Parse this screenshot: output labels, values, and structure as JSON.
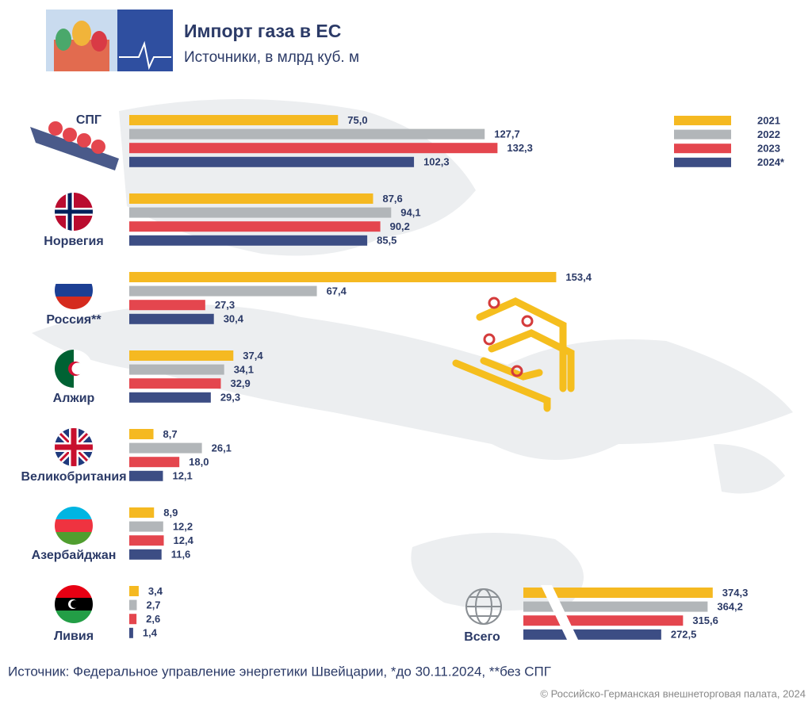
{
  "chart_data": [
    {
      "type": "bar",
      "title": "Импорт газа в ЕС",
      "subtitle": "Источники, в млрд куб. м",
      "categories": [
        "СПГ",
        "Норвегия",
        "Россия**",
        "Алжир",
        "Великобритания",
        "Азербайджан",
        "Ливия"
      ],
      "series": [
        {
          "name": "2021",
          "color": "#f5b921",
          "values": [
            75.0,
            87.6,
            153.4,
            37.4,
            8.7,
            8.9,
            3.4
          ],
          "value_labels": [
            "75,0",
            "87,6",
            "153,4",
            "37,4",
            "8,7",
            "8,9",
            "3,4"
          ]
        },
        {
          "name": "2022",
          "color": "#b2b6b9",
          "values": [
            127.7,
            94.1,
            67.4,
            34.1,
            26.1,
            12.2,
            2.7
          ],
          "value_labels": [
            "127,7",
            "94,1",
            "67,4",
            "34,1",
            "26,1",
            "12,2",
            "2,7"
          ]
        },
        {
          "name": "2023",
          "color": "#e4464e",
          "values": [
            132.3,
            90.2,
            27.3,
            32.9,
            18.0,
            12.4,
            2.6
          ],
          "value_labels": [
            "132,3",
            "90,2",
            "27,3",
            "32,9",
            "18,0",
            "12,4",
            "2,6"
          ]
        },
        {
          "name": "2024*",
          "color": "#3c4d84",
          "values": [
            102.3,
            85.5,
            30.4,
            29.3,
            12.1,
            11.6,
            1.4
          ],
          "value_labels": [
            "102,3",
            "85,5",
            "30,4",
            "29,3",
            "12,1",
            "11,6",
            "1,4"
          ]
        }
      ],
      "footnote": "Источник: Федеральное управление энергетики Швейцарии, *до 30.11.2024, **без СПГ",
      "copyright": "© Российско-Германская внешнеторговая палата, 2024"
    },
    {
      "type": "bar",
      "categories": [
        "Всего"
      ],
      "series": [
        {
          "color": "#f5b921",
          "values": [
            374.3
          ],
          "value_labels": [
            "374,3"
          ]
        },
        {
          "color": "#b2b6b9",
          "values": [
            364.2
          ],
          "value_labels": [
            "364,2"
          ]
        },
        {
          "color": "#e4464e",
          "values": [
            315.6
          ],
          "value_labels": [
            "315,6"
          ]
        },
        {
          "color": "#3c4d84",
          "values": [
            272.5
          ],
          "value_labels": [
            "272,5"
          ]
        }
      ]
    }
  ]
}
